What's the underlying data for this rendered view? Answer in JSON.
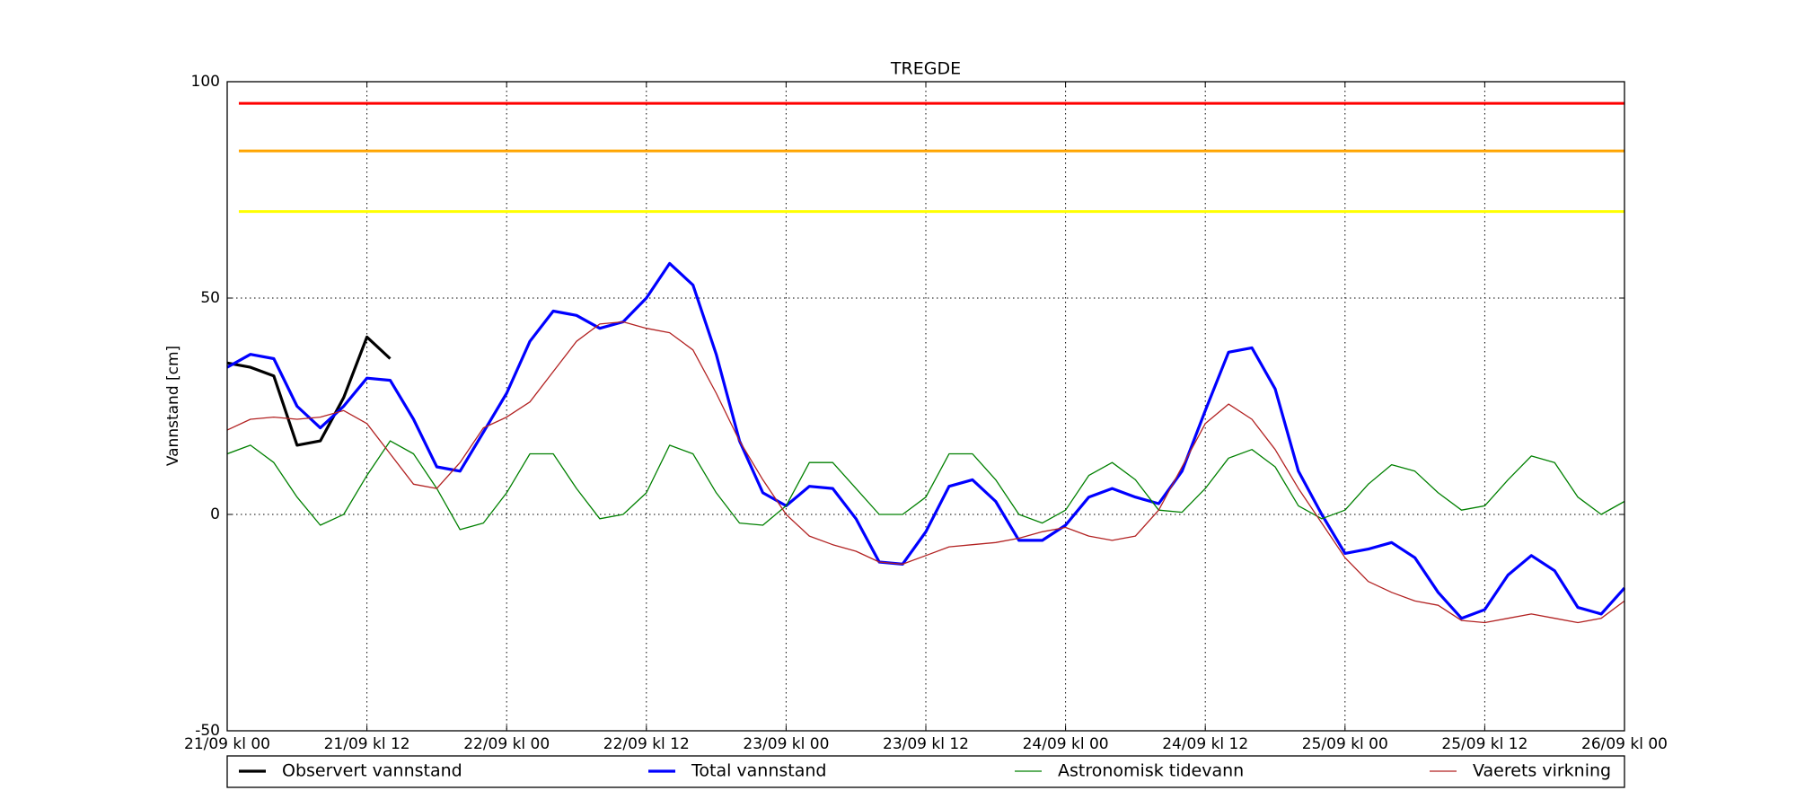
{
  "chart_data": {
    "type": "line",
    "title": "TREGDE",
    "y_label": "Vannstand [cm]",
    "categories": [
      "21/09 kl 00",
      null,
      null,
      null,
      null,
      null,
      "21/09 kl 12",
      null,
      null,
      null,
      null,
      null,
      "22/09 kl 00",
      null,
      null,
      null,
      null,
      null,
      "22/09 kl 12",
      null,
      null,
      null,
      null,
      null,
      "23/09 kl 00",
      null,
      null,
      null,
      null,
      null,
      "23/09 kl 12",
      null,
      null,
      null,
      null,
      null,
      "24/09 kl 00",
      null,
      null,
      null,
      null,
      null,
      "24/09 kl 12",
      null,
      null,
      null,
      null,
      null,
      "25/09 kl 00",
      null,
      null,
      null,
      null,
      null,
      "25/09 kl 12",
      null,
      null,
      null,
      null,
      null,
      "26/09 kl 00"
    ],
    "series": [
      {
        "name": "Observert vannstand",
        "color": "#000000",
        "width": 3.2,
        "values": [
          35,
          34,
          32,
          16,
          17,
          27,
          41,
          36,
          null,
          null,
          null,
          null,
          null,
          null,
          null,
          null,
          null,
          null,
          null,
          null,
          null,
          null,
          null,
          null,
          null,
          null,
          null,
          null,
          null,
          null,
          null,
          null,
          null,
          null,
          null,
          null,
          null,
          null,
          null,
          null,
          null,
          null,
          null,
          null,
          null,
          null,
          null,
          null,
          null,
          null,
          null,
          null,
          null,
          null,
          null,
          null,
          null,
          null,
          null,
          null,
          null
        ]
      },
      {
        "name": "Total vannstand",
        "color": "#0000ff",
        "width": 3.2,
        "values": [
          34,
          37,
          36,
          25,
          20,
          25,
          31.5,
          31,
          22,
          11,
          10,
          19,
          28,
          40,
          47,
          46,
          43,
          44.5,
          50,
          58,
          53,
          37,
          17,
          5,
          2,
          6.5,
          6,
          -1,
          -11,
          -11.5,
          -4,
          6.5,
          8,
          3,
          -6,
          -6,
          -2.5,
          4,
          6,
          4,
          2.5,
          10,
          24,
          37.5,
          38.5,
          29,
          10,
          0,
          -9,
          -8,
          -6.5,
          -10,
          -18,
          -24,
          -22,
          -14,
          -9.5,
          -13,
          -21.5,
          -23,
          -17
        ]
      },
      {
        "name": "Astronomisk tidevann",
        "color": "#008000",
        "width": 1.3,
        "values": [
          14,
          16,
          12,
          4,
          -2.5,
          0,
          9,
          17,
          14,
          6,
          -3.5,
          -2,
          5,
          14,
          14,
          6,
          -1,
          0,
          5,
          16,
          14,
          5,
          -2,
          -2.5,
          2,
          12,
          12,
          6,
          0,
          0,
          4,
          14,
          14,
          8,
          0,
          -2,
          1,
          9,
          12,
          8,
          1,
          0.5,
          6,
          13,
          15,
          11,
          2,
          -1,
          1,
          7,
          11.5,
          10,
          5,
          1,
          2,
          8,
          13.5,
          12,
          4,
          0,
          3
        ]
      },
      {
        "name": "Vaerets virkning",
        "color": "#b22222",
        "width": 1.3,
        "values": [
          19.5,
          22,
          22.5,
          22,
          22.5,
          24,
          21,
          14,
          7,
          6,
          12,
          20,
          22.5,
          26,
          33,
          40,
          44,
          44.5,
          43,
          42,
          38,
          28,
          17,
          8,
          0,
          -5,
          -7,
          -8.5,
          -11,
          -11.5,
          -9.5,
          -7.5,
          -7,
          -6.5,
          -5.5,
          -4,
          -3,
          -5,
          -6,
          -5,
          1,
          11,
          21,
          25.5,
          22,
          15,
          6,
          -2,
          -10,
          -15.5,
          -18,
          -20,
          -21,
          -24.5,
          -25,
          -24,
          -23,
          -24,
          -25,
          -24,
          -20
        ]
      }
    ],
    "thresholds": [
      {
        "value": 95,
        "color": "#ff0000"
      },
      {
        "value": 84,
        "color": "#ffa500"
      },
      {
        "value": 70,
        "color": "#ffff00"
      }
    ],
    "ylim": [
      -50,
      100
    ],
    "yticks": [
      -50,
      0,
      50,
      100
    ],
    "grid": true
  }
}
